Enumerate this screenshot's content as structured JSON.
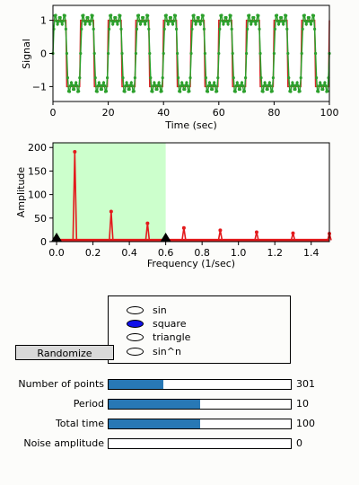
{
  "chart_data": [
    {
      "type": "line",
      "xlabel": "Time (sec)",
      "ylabel": "Signal",
      "xlim": [
        0,
        100
      ],
      "ylim": [
        -1.45,
        1.45
      ],
      "xticks": [
        0,
        20,
        40,
        60,
        80,
        100
      ],
      "xtick_labels": [
        "0",
        "20",
        "40",
        "60",
        "80",
        "100"
      ],
      "yticks": [
        -1,
        0,
        1
      ],
      "ytick_labels": [
        "−1",
        "0",
        "1"
      ],
      "period": 10,
      "series": [
        {
          "role": "clean square wave",
          "color": "#d62728",
          "amplitude": 1
        },
        {
          "role": "reconstructed signal",
          "color": "#2ca02c",
          "marker": "dot",
          "ripple": 0.2
        }
      ]
    },
    {
      "type": "line",
      "xlabel": "Frequency (1/sec)",
      "ylabel": "Amplitude",
      "xlim": [
        -0.02,
        1.5
      ],
      "ylim": [
        0,
        210
      ],
      "xticks": [
        0.0,
        0.2,
        0.4,
        0.6,
        0.8,
        1.0,
        1.2,
        1.4
      ],
      "xtick_labels": [
        "0.0",
        "0.2",
        "0.4",
        "0.6",
        "0.8",
        "1.0",
        "1.2",
        "1.4"
      ],
      "yticks": [
        0,
        50,
        100,
        150,
        200
      ],
      "ytick_labels": [
        "0",
        "50",
        "100",
        "150",
        "200"
      ],
      "highlight_band": {
        "from": -0.02,
        "to": 0.6,
        "color": "#ccffcc"
      },
      "band_handles": [
        0.0,
        0.6
      ],
      "peaks": [
        {
          "x": 0.1,
          "y": 191
        },
        {
          "x": 0.3,
          "y": 64
        },
        {
          "x": 0.5,
          "y": 39
        },
        {
          "x": 0.7,
          "y": 29
        },
        {
          "x": 0.9,
          "y": 24
        },
        {
          "x": 1.1,
          "y": 20
        },
        {
          "x": 1.3,
          "y": 18
        },
        {
          "x": 1.5,
          "y": 17
        }
      ],
      "baseline": 3,
      "color": "#e31a1c"
    }
  ],
  "controls": {
    "randomize_label": "Randomize",
    "wave_options": [
      "sin",
      "square",
      "triangle",
      "sin^n"
    ],
    "selected_wave": "square",
    "sliders": [
      {
        "label": "Number of points",
        "value": "301",
        "fraction": 0.3
      },
      {
        "label": "Period",
        "value": "10",
        "fraction": 0.5
      },
      {
        "label": "Total time",
        "value": "100",
        "fraction": 0.5
      },
      {
        "label": "Noise amplitude",
        "value": "0",
        "fraction": 0.0
      }
    ]
  }
}
